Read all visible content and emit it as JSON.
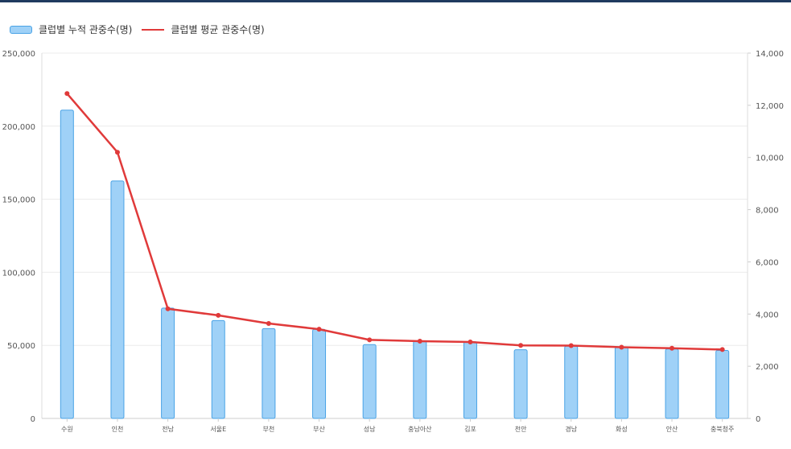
{
  "legend": {
    "bar_label": "클럽별 누적 관중수(명)",
    "line_label": "클럽별 평균 관중수(명)"
  },
  "colors": {
    "bar_fill": "#9fd1f7",
    "bar_stroke": "#4aa3e6",
    "line": "#e03a3a",
    "grid": "#ececec",
    "axis_text": "#555555",
    "top_rule": "#1f3a5f"
  },
  "chart_data": {
    "type": "bar",
    "categories": [
      "수원",
      "인천",
      "전남",
      "서울E",
      "부천",
      "부산",
      "성남",
      "충남아산",
      "김포",
      "천안",
      "경남",
      "화성",
      "안산",
      "충북청주"
    ],
    "series": [
      {
        "name": "클럽별 누적 관중수(명)",
        "type": "bar",
        "axis": "left",
        "values": [
          211000,
          162500,
          75500,
          67000,
          61500,
          61000,
          50500,
          53000,
          52500,
          47000,
          49500,
          48500,
          47500,
          46500
        ]
      },
      {
        "name": "클럽별 평균 관중수(명)",
        "type": "line",
        "axis": "right",
        "values": [
          12450,
          10200,
          4200,
          3950,
          3640,
          3420,
          3010,
          2960,
          2930,
          2800,
          2790,
          2730,
          2690,
          2640
        ]
      }
    ],
    "y_left": {
      "min": 0,
      "max": 250000,
      "ticks": [
        "0",
        "50,000",
        "100,000",
        "150,000",
        "200,000",
        "250,000"
      ]
    },
    "y_right": {
      "min": 0,
      "max": 14000,
      "ticks": [
        "0",
        "2,000",
        "4,000",
        "6,000",
        "8,000",
        "10,000",
        "12,000",
        "14,000"
      ]
    },
    "legend_position": "top-left",
    "grid": true
  }
}
